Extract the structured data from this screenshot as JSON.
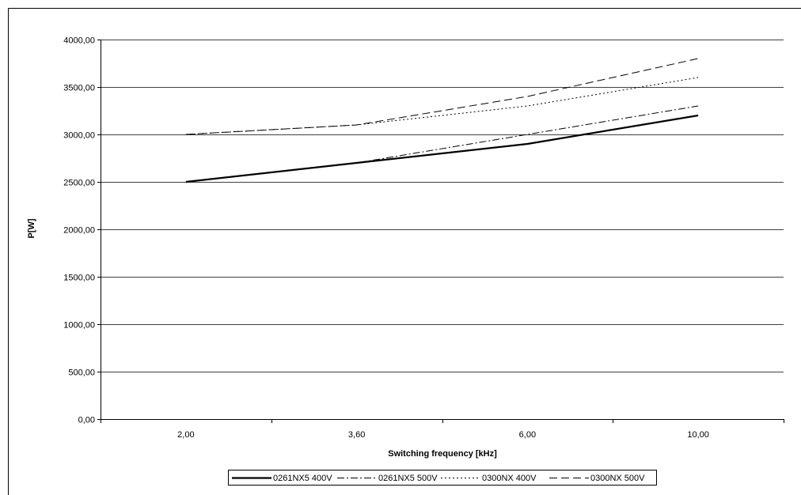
{
  "chart_data": {
    "type": "line",
    "title": "",
    "xlabel": "Switching frequency [kHz]",
    "ylabel": "P[W]",
    "categories": [
      "2,00",
      "3,60",
      "6,00",
      "10,00"
    ],
    "ylim": [
      0,
      4000
    ],
    "yticks": [
      "0,00",
      "500,00",
      "1000,00",
      "1500,00",
      "2000,00",
      "2500,00",
      "3000,00",
      "3500,00",
      "4000,00"
    ],
    "grid": "horizontal",
    "legend_position": "bottom",
    "series": [
      {
        "name": "0261NX5 400V",
        "values": [
          2500,
          2700,
          2900,
          3200
        ],
        "style": "solid-thick"
      },
      {
        "name": "0261NX5 500V",
        "values": [
          2500,
          2700,
          3000,
          3300
        ],
        "style": "dash-dot"
      },
      {
        "name": "0300NX 400V",
        "values": [
          3000,
          3100,
          3300,
          3600
        ],
        "style": "dotted"
      },
      {
        "name": "0300NX 500V",
        "values": [
          3000,
          3100,
          3400,
          3800
        ],
        "style": "dashed"
      }
    ]
  }
}
